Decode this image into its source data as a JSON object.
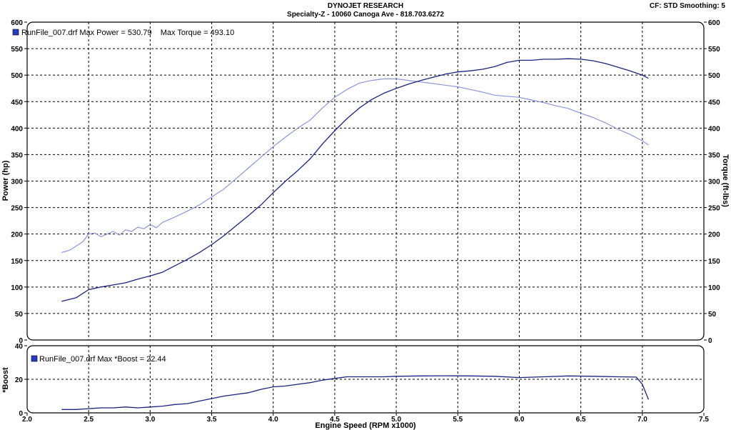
{
  "header": {
    "company": "DYNOJET RESEARCH",
    "shop": "Specialty-Z - 10060 Canoga Ave - 818.703.6272",
    "settings": "CF: STD  Smoothing: 5"
  },
  "colors": {
    "power": "#1a237e",
    "torque": "#8c96dc",
    "boost": "#1a237e",
    "legend_swatch": "#2a3bc0"
  },
  "chart_data": [
    {
      "type": "line",
      "legend": "RunFile_007.drf Max Power = 530.79    Max Torque = 493.10",
      "xlabel": "",
      "ylabel": "Power (hp)",
      "y2label": "Torque (ft-lbs)",
      "xlim": [
        2.0,
        7.5
      ],
      "ylim": [
        0,
        600
      ],
      "y2lim": [
        0,
        600
      ],
      "grid": true,
      "xticks": [],
      "yticks": [
        "0",
        "50",
        "100",
        "150",
        "200",
        "250",
        "300",
        "350",
        "400",
        "450",
        "500",
        "550",
        "600"
      ],
      "y2ticks": [
        "0",
        "50",
        "100",
        "150",
        "200",
        "250",
        "300",
        "350",
        "400",
        "450",
        "500",
        "550",
        "600"
      ],
      "series": [
        {
          "name": "Power",
          "axis": "left",
          "x": [
            2.28,
            2.4,
            2.5,
            2.6,
            2.7,
            2.8,
            2.9,
            3.0,
            3.1,
            3.2,
            3.3,
            3.4,
            3.5,
            3.6,
            3.7,
            3.8,
            3.9,
            4.0,
            4.1,
            4.2,
            4.3,
            4.4,
            4.5,
            4.6,
            4.7,
            4.8,
            4.9,
            5.0,
            5.1,
            5.2,
            5.3,
            5.4,
            5.5,
            5.6,
            5.7,
            5.8,
            5.9,
            6.0,
            6.1,
            6.2,
            6.3,
            6.4,
            6.5,
            6.6,
            6.7,
            6.8,
            6.9,
            7.0,
            7.05
          ],
          "y": [
            73,
            80,
            95,
            100,
            104,
            108,
            115,
            121,
            128,
            140,
            152,
            165,
            180,
            197,
            216,
            235,
            255,
            278,
            300,
            320,
            342,
            370,
            395,
            418,
            438,
            454,
            466,
            475,
            483,
            490,
            496,
            502,
            506,
            508,
            511,
            516,
            524,
            528,
            528,
            530,
            530,
            531,
            530,
            527,
            522,
            515,
            508,
            500,
            494
          ]
        },
        {
          "name": "Torque",
          "axis": "right",
          "x": [
            2.28,
            2.35,
            2.45,
            2.5,
            2.55,
            2.6,
            2.65,
            2.7,
            2.75,
            2.8,
            2.85,
            2.9,
            2.95,
            3.0,
            3.05,
            3.1,
            3.2,
            3.3,
            3.4,
            3.5,
            3.6,
            3.7,
            3.8,
            3.9,
            4.0,
            4.1,
            4.2,
            4.3,
            4.4,
            4.5,
            4.6,
            4.7,
            4.8,
            4.9,
            5.0,
            5.1,
            5.2,
            5.3,
            5.4,
            5.5,
            5.6,
            5.7,
            5.8,
            5.9,
            6.0,
            6.1,
            6.2,
            6.3,
            6.4,
            6.5,
            6.6,
            6.7,
            6.8,
            6.9,
            7.0,
            7.05
          ],
          "y": [
            165,
            170,
            185,
            200,
            202,
            195,
            200,
            205,
            198,
            208,
            205,
            213,
            210,
            218,
            212,
            222,
            232,
            243,
            255,
            270,
            285,
            305,
            325,
            345,
            365,
            383,
            400,
            415,
            438,
            458,
            473,
            485,
            490,
            493,
            493,
            490,
            487,
            484,
            481,
            478,
            473,
            468,
            462,
            460,
            458,
            453,
            448,
            442,
            437,
            428,
            420,
            410,
            398,
            388,
            376,
            368
          ]
        }
      ]
    },
    {
      "type": "line",
      "legend": "RunFile_007.drf Max *Boost = 22.44",
      "xlabel": "Engine Speed (RPM x1000)",
      "ylabel": "*Boost",
      "xlim": [
        2.0,
        7.5
      ],
      "ylim": [
        0,
        40
      ],
      "grid": true,
      "xticks": [
        "2.0",
        "2.5",
        "3.0",
        "3.5",
        "4.0",
        "4.5",
        "5.0",
        "5.5",
        "6.0",
        "6.5",
        "7.0",
        "7.5"
      ],
      "yticks": [
        "0",
        "20",
        "40"
      ],
      "series": [
        {
          "name": "*Boost",
          "x": [
            2.28,
            2.4,
            2.5,
            2.6,
            2.7,
            2.8,
            2.9,
            3.0,
            3.1,
            3.2,
            3.3,
            3.4,
            3.5,
            3.6,
            3.7,
            3.8,
            3.9,
            4.0,
            4.1,
            4.2,
            4.3,
            4.4,
            4.5,
            4.6,
            4.7,
            4.8,
            4.9,
            5.0,
            5.2,
            5.4,
            5.6,
            5.8,
            6.0,
            6.2,
            6.4,
            6.6,
            6.8,
            6.95,
            7.0,
            7.05
          ],
          "y": [
            2,
            2,
            2.5,
            3,
            3,
            3.5,
            3,
            3.5,
            4,
            5,
            5.5,
            7,
            8.5,
            10,
            11,
            12,
            14,
            15.5,
            16,
            17,
            18,
            19.5,
            20.5,
            21.5,
            21.5,
            21.5,
            21.5,
            21.8,
            22,
            22.1,
            22,
            21.8,
            21,
            21.5,
            22,
            21.8,
            21.5,
            21.3,
            17,
            8
          ]
        }
      ]
    }
  ]
}
